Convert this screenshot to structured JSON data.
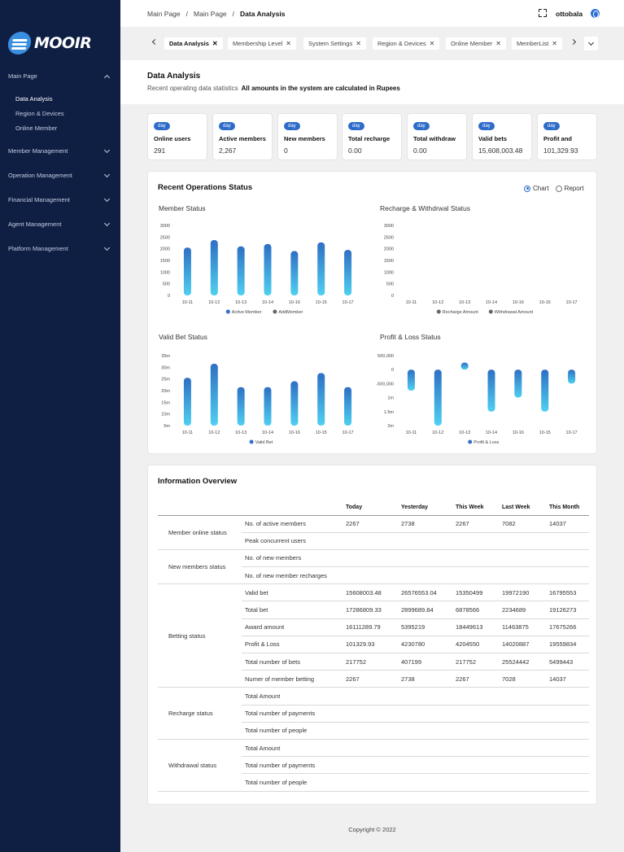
{
  "brand": {
    "name": "MOOIR"
  },
  "sidebar": {
    "groups": [
      {
        "label": "Main Page",
        "expanded": true
      },
      {
        "label": "Member Management"
      },
      {
        "label": "Operation Management"
      },
      {
        "label": "Financial Management"
      },
      {
        "label": "Agent Management"
      },
      {
        "label": "Platform Management"
      }
    ],
    "main_items": [
      "Data Analysis",
      "Region & Devices",
      "Online Member"
    ]
  },
  "header": {
    "breadcrumb": [
      "Main Page",
      "Main Page",
      "Data Analysis"
    ],
    "separator": "/",
    "user": "ottobala"
  },
  "tabs": [
    {
      "label": "Data Analysis",
      "active": true
    },
    {
      "label": "Membership Level"
    },
    {
      "label": "System Settings"
    },
    {
      "label": "Region & Devices"
    },
    {
      "label": "Online Member"
    },
    {
      "label": "MemberList"
    }
  ],
  "tab_close": "✕",
  "page": {
    "title": "Data Analysis",
    "subtitle": "Recent operating data statistics",
    "note": "All amounts in the system are calculated in Rupees"
  },
  "stats": [
    {
      "badge": "day",
      "label": "Online users",
      "value": "291"
    },
    {
      "badge": "day",
      "label": "Active members",
      "value": "2,267"
    },
    {
      "badge": "day",
      "label": "New members",
      "value": "0"
    },
    {
      "badge": "day",
      "label": "Total recharge",
      "value": "0.00"
    },
    {
      "badge": "day",
      "label": "Total withdraw",
      "value": "0.00"
    },
    {
      "badge": "day",
      "label": "Valid bets",
      "value": "15,608,003.48"
    },
    {
      "badge": "day",
      "label": "Profit and",
      "value": "101,329.93"
    }
  ],
  "operations": {
    "title": "Recent Operations Status",
    "view_options": [
      "Chart",
      "Report"
    ],
    "selected_view": "Chart"
  },
  "colors": {
    "bar_top": "#2e6fc4",
    "bar_bottom": "#4fd0f0",
    "legend_gray": "#666666",
    "accent": "#2d6bc9",
    "sidebar_bg": "#0f1f44"
  },
  "chart_data": [
    {
      "type": "bar",
      "title": "Member Status",
      "categories": [
        "10-11",
        "10-12",
        "10-13",
        "10-14",
        "10-16",
        "10-15",
        "10-17"
      ],
      "series": [
        {
          "name": "Active Member",
          "values": [
            2050,
            2370,
            2100,
            2200,
            1900,
            2270,
            1950
          ]
        },
        {
          "name": "AddMember",
          "values": [
            0,
            0,
            0,
            0,
            0,
            0,
            0
          ]
        }
      ],
      "yticks": [
        "0",
        "500",
        "1000",
        "1500",
        "2000",
        "2500",
        "3000"
      ],
      "ylim": [
        0,
        3000
      ]
    },
    {
      "type": "bar",
      "title": "Recharge & Withdrwal Status",
      "categories": [
        "10-11",
        "10-12",
        "10-13",
        "10-14",
        "10-16",
        "10-15",
        "10-17"
      ],
      "series": [
        {
          "name": "Recharge Amount",
          "values": [
            0,
            0,
            0,
            0,
            0,
            0,
            0
          ]
        },
        {
          "name": "Withdrawal Amount",
          "values": [
            0,
            0,
            0,
            0,
            0,
            0,
            0
          ]
        }
      ],
      "yticks": [
        "0",
        "500",
        "1000",
        "1500",
        "2000",
        "2500",
        "3000"
      ],
      "ylim": [
        0,
        3000
      ]
    },
    {
      "type": "bar",
      "title": "Valid Bet Status",
      "categories": [
        "10-11",
        "10-12",
        "10-13",
        "10-14",
        "10-16",
        "10-15",
        "10-17"
      ],
      "series": [
        {
          "name": "Valid Bet",
          "values": [
            25.5,
            31.5,
            21.5,
            21.5,
            24,
            27.5,
            21.5
          ]
        }
      ],
      "yticks": [
        "5m",
        "10m",
        "15m",
        "20m",
        "25m",
        "30m",
        "35m"
      ],
      "ylim": [
        5,
        35
      ]
    },
    {
      "type": "bar",
      "title": "Profit & Loss Status",
      "categories": [
        "10-11",
        "10-12",
        "10-13",
        "10-14",
        "10-16",
        "10-15",
        "10-17"
      ],
      "series": [
        {
          "name": "Profit & Loss",
          "values": [
            -750000,
            -2000000,
            250000,
            -1500000,
            -1000000,
            -1500000,
            -500000
          ]
        }
      ],
      "yticks": [
        "2m",
        "1.5m",
        "1m",
        "-500,000",
        "0",
        "500,000"
      ],
      "ylim": [
        -2000000,
        500000
      ]
    }
  ],
  "overview": {
    "title": "Information Overview",
    "columns": [
      "Today",
      "Yesterday",
      "This Week",
      "Last Week",
      "This Month"
    ],
    "sections": [
      {
        "group": "Member online status",
        "rows": [
          {
            "label": "No. of active members",
            "values": [
              "2267",
              "2738",
              "2267",
              "7082",
              "14037"
            ]
          },
          {
            "label": "Peak concurrent users",
            "values": [
              "",
              "",
              "",
              "",
              ""
            ]
          }
        ]
      },
      {
        "group": "New members status",
        "rows": [
          {
            "label": "No. of new members",
            "values": [
              "",
              "",
              "",
              "",
              ""
            ]
          },
          {
            "label": "No. of new member recharges",
            "values": [
              "",
              "",
              "",
              "",
              ""
            ]
          }
        ]
      },
      {
        "group": "Betting status",
        "rows": [
          {
            "label": "Valid bet",
            "values": [
              "15608003.48",
              "26576553.04",
              "15350499",
              "19972190",
              "16795553"
            ]
          },
          {
            "label": "Total bet",
            "values": [
              "17286809.33",
              "2899689.84",
              "6878566",
              "2234689",
              "19126273"
            ]
          },
          {
            "label": "Award amount",
            "values": [
              "16111289.79",
              "5395219",
              "18449613",
              "11463875",
              "17675266"
            ]
          },
          {
            "label": "Profit & Loss",
            "values": [
              "101329.93",
              "4230780",
              "4204550",
              "14020887",
              "19559834"
            ]
          },
          {
            "label": "Total number of bets",
            "values": [
              "217752",
              "407199",
              "217752",
              "25524442",
              "5499443"
            ]
          },
          {
            "label": "Numer of member betting",
            "values": [
              "2267",
              "2738",
              "2267",
              "7028",
              "14037"
            ]
          }
        ]
      },
      {
        "group": "Recharge status",
        "rows": [
          {
            "label": "Total Amount",
            "values": [
              "",
              "",
              "",
              "",
              ""
            ]
          },
          {
            "label": "Total number of payments",
            "values": [
              "",
              "",
              "",
              "",
              ""
            ]
          },
          {
            "label": "Total number of people",
            "values": [
              "",
              "",
              "",
              "",
              ""
            ]
          }
        ]
      },
      {
        "group": "Withdrawal status",
        "rows": [
          {
            "label": "Total Amount",
            "values": [
              "",
              "",
              "",
              "",
              ""
            ]
          },
          {
            "label": "Total number of payments",
            "values": [
              "",
              "",
              "",
              "",
              ""
            ]
          },
          {
            "label": "Total number of people",
            "values": [
              "",
              "",
              "",
              "",
              ""
            ]
          }
        ]
      }
    ]
  },
  "footer": {
    "copyright": "Copyright © 2022"
  }
}
